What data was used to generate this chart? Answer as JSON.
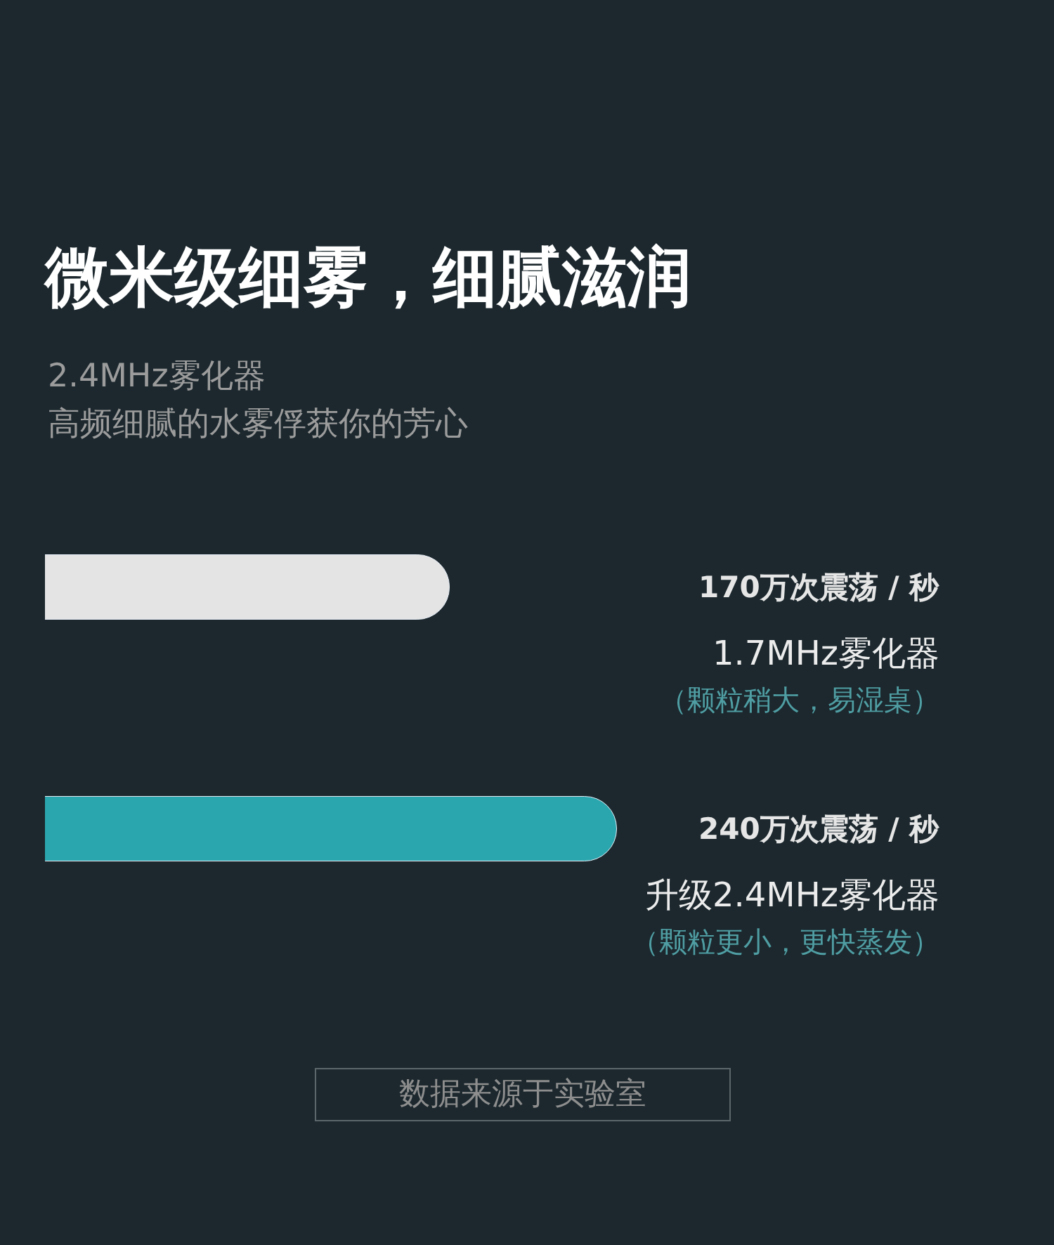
{
  "chart_data": {
    "type": "bar",
    "orientation": "horizontal",
    "title": "微米级细雾，细腻滋润",
    "subtitle": "2.4MHz雾化器",
    "categories": [
      "1.7MHz雾化器",
      "升级2.4MHz雾化器"
    ],
    "values": [
      170,
      240
    ],
    "colors": [
      "#e4e4e4",
      "#2aa6ae"
    ],
    "value_labels": [
      "170万次震荡 / 秒",
      "240万次震荡 / 秒"
    ],
    "tick_labels": false,
    "annotations": [
      "高频细腻的水雾俘获你的芳心",
      "（颗粒稍大，易湿桌）",
      "（颗粒更小，更快蒸发）",
      "数据来源于实验室"
    ]
  }
}
